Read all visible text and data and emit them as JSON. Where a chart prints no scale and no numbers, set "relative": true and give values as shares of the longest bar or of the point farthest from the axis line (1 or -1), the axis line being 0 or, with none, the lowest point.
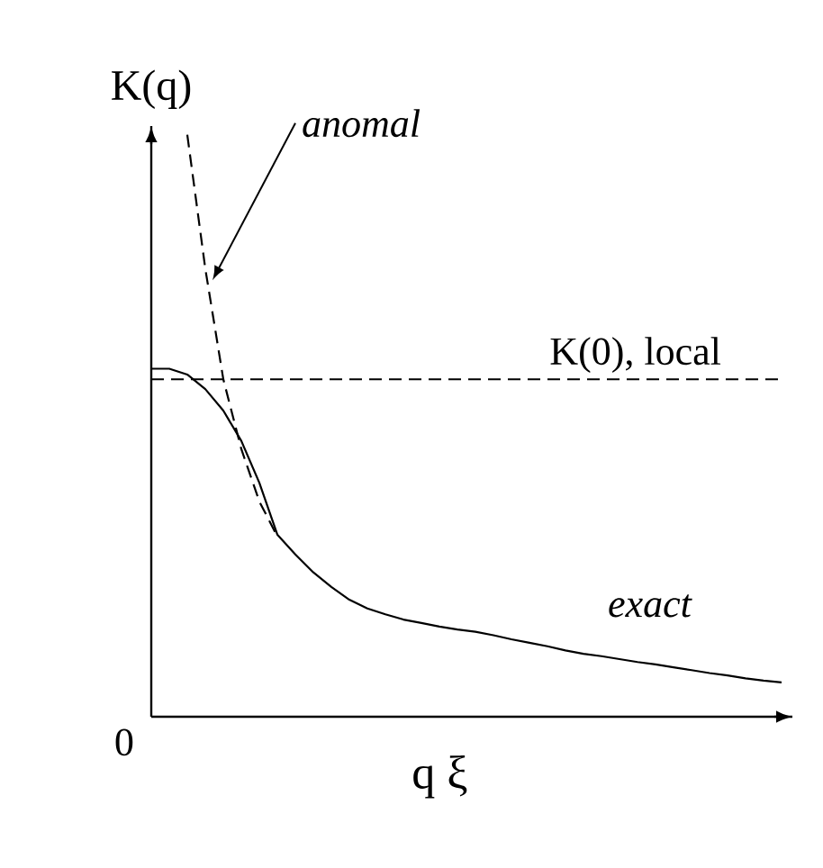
{
  "chart_data": {
    "type": "line",
    "relative": true,
    "xlabel": "q ξ",
    "ylabel": "K(q)",
    "annotations": [
      "0"
    ],
    "categories": [
      null,
      null,
      null,
      null,
      null,
      null,
      null,
      null,
      null,
      null,
      null,
      null,
      null,
      null,
      null,
      null,
      null,
      null,
      null,
      null,
      null,
      null,
      null,
      null,
      null,
      null,
      null,
      null,
      null,
      null,
      null,
      null,
      null,
      null,
      null,
      null
    ],
    "series": [
      {
        "name": "exact",
        "color": "#000000",
        "line_style": "solid",
        "values": [
          0.598,
          0.598,
          0.588,
          0.563,
          0.526,
          0.474,
          0.402,
          0.313,
          0.279,
          0.248,
          0.223,
          0.201,
          0.186,
          0.176,
          0.167,
          0.161,
          0.155,
          0.15,
          0.146,
          0.14,
          0.133,
          0.127,
          0.121,
          0.114,
          0.108,
          0.104,
          0.099,
          0.094,
          0.09,
          0.085,
          0.08,
          0.075,
          0.071,
          0.066,
          0.062,
          0.059
        ]
      },
      {
        "name": "anomal",
        "color": "#000000",
        "line_style": "dashed",
        "values": [
          null,
          null,
          1.0,
          0.77,
          0.58,
          0.46,
          0.37,
          0.31,
          null,
          null,
          null,
          null,
          null,
          null,
          null,
          null,
          null,
          null,
          null,
          null,
          null,
          null,
          null,
          null,
          null,
          null,
          null,
          null,
          null,
          null,
          null,
          null,
          null,
          null,
          null,
          null
        ]
      }
    ],
    "ref_lines": [
      {
        "axis": "y",
        "value": 0.58,
        "label": "K(0), local",
        "line_style": "dashed",
        "color": "#000000"
      }
    ]
  }
}
